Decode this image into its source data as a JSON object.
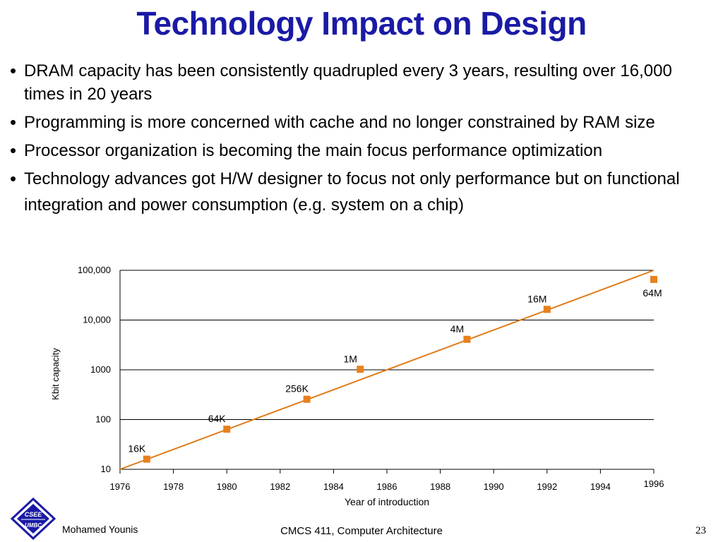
{
  "slide": {
    "title": "Technology Impact on Design",
    "bullets": [
      "DRAM capacity has been consistently quadrupled every 3 years, resulting over 16,000 times in 20 years",
      "Programming is more concerned with cache and no longer constrained by RAM size",
      "Processor organization is becoming the main focus performance optimization",
      "Technology advances got H/W designer to focus not only performance but on functional integration and power consumption (e.g. system on a chip)"
    ],
    "bullet_symbol": "•"
  },
  "footer": {
    "author": "Mohamed Younis",
    "course": "CMCS 411, Computer Architecture",
    "page_number": "23",
    "logo_text": [
      "CSEE",
      "UMBC"
    ],
    "logo_color": "#1a1aa6"
  },
  "chart_data": {
    "type": "scatter",
    "title": "",
    "xlabel": "Year of introduction",
    "ylabel": "Kbit capacity",
    "xlim": [
      1976,
      1996
    ],
    "ylim": [
      10,
      100000
    ],
    "y_scale": "log",
    "x_ticks": [
      1976,
      1978,
      1980,
      1982,
      1984,
      1986,
      1988,
      1990,
      1992,
      1994,
      1996
    ],
    "y_ticks": [
      {
        "value": 10,
        "label": "10"
      },
      {
        "value": 100,
        "label": "100"
      },
      {
        "value": 1000,
        "label": "1000"
      },
      {
        "value": 10000,
        "label": "10,000"
      },
      {
        "value": 100000,
        "label": "100,000"
      }
    ],
    "grid": "horizontal",
    "marker_color": "#e8801e",
    "trend_color": "#e07b18",
    "points": [
      {
        "x": 1977,
        "y": 16,
        "label": "16K"
      },
      {
        "x": 1980,
        "y": 64,
        "label": "64K"
      },
      {
        "x": 1983,
        "y": 256,
        "label": "256K"
      },
      {
        "x": 1985,
        "y": 1024,
        "label": "1M"
      },
      {
        "x": 1989,
        "y": 4096,
        "label": "4M"
      },
      {
        "x": 1992,
        "y": 16384,
        "label": "16M"
      },
      {
        "x": 1996,
        "y": 65536,
        "label": "64M"
      }
    ],
    "trend_line": [
      {
        "x": 1976,
        "y": 10
      },
      {
        "x": 1996,
        "y": 100000
      }
    ]
  }
}
